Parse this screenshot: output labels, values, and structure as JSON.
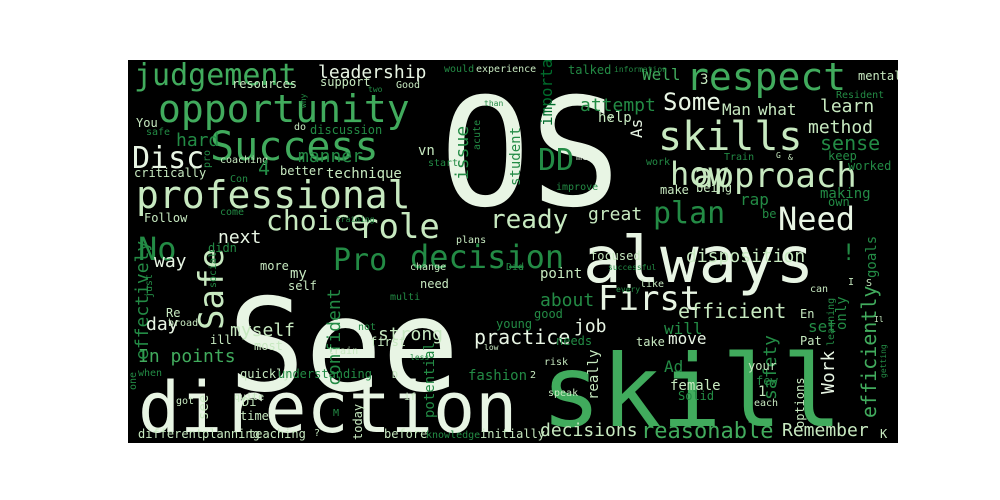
{
  "wordcloud": {
    "background": "#000000",
    "palette": {
      "light": "#e8f5e4",
      "pale": "#c7e9c0",
      "mid": "#74c476",
      "green": "#41ab5d",
      "dark": "#238b45",
      "deep": "#006d2c"
    },
    "words": [
      {
        "text": "See",
        "color": "light"
      },
      {
        "text": "OS",
        "color": "light"
      },
      {
        "text": "skill",
        "color": "green"
      },
      {
        "text": "always",
        "color": "light"
      },
      {
        "text": "direction",
        "color": "light"
      },
      {
        "text": "opportunity",
        "color": "green"
      },
      {
        "text": "professional",
        "color": "pale"
      },
      {
        "text": "Success",
        "color": "green"
      },
      {
        "text": "respect",
        "color": "green"
      },
      {
        "text": "skills",
        "color": "pale"
      },
      {
        "text": "approach",
        "color": "pale"
      },
      {
        "text": "judgement",
        "color": "green"
      },
      {
        "text": "decision",
        "color": "dark"
      },
      {
        "text": "role",
        "color": "pale"
      },
      {
        "text": "choice",
        "color": "pale"
      },
      {
        "text": "Safe",
        "color": "pale"
      },
      {
        "text": "First",
        "color": "light"
      },
      {
        "text": "Disc",
        "color": "light"
      },
      {
        "text": "how",
        "color": "pale"
      },
      {
        "text": "plan",
        "color": "dark"
      },
      {
        "text": "Need",
        "color": "light"
      },
      {
        "text": "Pro",
        "color": "dark"
      },
      {
        "text": "ready",
        "color": "pale"
      },
      {
        "text": "No",
        "color": "dark"
      },
      {
        "text": "DD",
        "color": "dark"
      },
      {
        "text": "Some",
        "color": "light"
      },
      {
        "text": "reasonable",
        "color": "green"
      },
      {
        "text": "efficiently",
        "color": "green"
      },
      {
        "text": "efficient",
        "color": "pale"
      },
      {
        "text": "leadership",
        "color": "light"
      },
      {
        "text": "hard",
        "color": "dark"
      },
      {
        "text": "sense",
        "color": "dark"
      },
      {
        "text": "method",
        "color": "pale"
      },
      {
        "text": "learn",
        "color": "pale"
      },
      {
        "text": "disposition",
        "color": "pale"
      },
      {
        "text": "practice",
        "color": "light"
      },
      {
        "text": "decisions",
        "color": "pale"
      },
      {
        "text": "Remember",
        "color": "pale"
      },
      {
        "text": "strong",
        "color": "pale"
      },
      {
        "text": "confident",
        "color": "dark"
      },
      {
        "text": "myself",
        "color": "pale"
      },
      {
        "text": "In points",
        "color": "green"
      },
      {
        "text": "effectively",
        "color": "dark"
      },
      {
        "text": "way",
        "color": "light"
      },
      {
        "text": "day",
        "color": "light"
      },
      {
        "text": "job",
        "color": "light"
      },
      {
        "text": "Work",
        "color": "light"
      },
      {
        "text": "safety",
        "color": "dark"
      },
      {
        "text": "great",
        "color": "pale"
      },
      {
        "text": "about",
        "color": "dark"
      },
      {
        "text": "next",
        "color": "light"
      },
      {
        "text": "attempt",
        "color": "dark"
      },
      {
        "text": "technique",
        "color": "pale"
      },
      {
        "text": "manner",
        "color": "dark"
      },
      {
        "text": "issue",
        "color": "dark"
      },
      {
        "text": "student",
        "color": "dark"
      },
      {
        "text": "important",
        "color": "deep"
      },
      {
        "text": "Well",
        "color": "green"
      },
      {
        "text": "Man",
        "color": "pale"
      },
      {
        "text": "what",
        "color": "pale"
      },
      {
        "text": "As",
        "color": "light"
      },
      {
        "text": "help",
        "color": "pale"
      },
      {
        "text": "mental",
        "color": "pale"
      },
      {
        "text": "Resident",
        "color": "dark"
      },
      {
        "text": "Good",
        "color": "pale"
      },
      {
        "text": "support",
        "color": "pale"
      },
      {
        "text": "resources",
        "color": "pale"
      },
      {
        "text": "You",
        "color": "pale"
      },
      {
        "text": "coaching",
        "color": "pale"
      },
      {
        "text": "critically",
        "color": "pale"
      },
      {
        "text": "better",
        "color": "pale"
      },
      {
        "text": "Follow",
        "color": "pale"
      },
      {
        "text": "didn",
        "color": "dark"
      },
      {
        "text": "quickly",
        "color": "pale"
      },
      {
        "text": "understanding",
        "color": "dark"
      },
      {
        "text": "fashion",
        "color": "dark"
      },
      {
        "text": "see",
        "color": "pale"
      },
      {
        "text": "Di",
        "color": "pale"
      },
      {
        "text": "time",
        "color": "pale"
      },
      {
        "text": "different",
        "color": "pale"
      },
      {
        "text": "planning",
        "color": "pale"
      },
      {
        "text": "teaching",
        "color": "pale"
      },
      {
        "text": "today",
        "color": "pale"
      },
      {
        "text": "before",
        "color": "pale"
      },
      {
        "text": "knowledge",
        "color": "dark"
      },
      {
        "text": "initially",
        "color": "pale"
      },
      {
        "text": "potential",
        "color": "dark"
      },
      {
        "text": "really",
        "color": "pale"
      },
      {
        "text": "female",
        "color": "pale"
      },
      {
        "text": "move",
        "color": "light"
      },
      {
        "text": "options",
        "color": "pale"
      },
      {
        "text": "set",
        "color": "dark"
      },
      {
        "text": "will",
        "color": "dark"
      },
      {
        "text": "only",
        "color": "dark"
      },
      {
        "text": "goals",
        "color": "dark"
      },
      {
        "text": "make",
        "color": "pale"
      },
      {
        "text": "being",
        "color": "pale"
      },
      {
        "text": "making",
        "color": "dark"
      },
      {
        "text": "own",
        "color": "dark"
      },
      {
        "text": "keep",
        "color": "dark"
      },
      {
        "text": "worked",
        "color": "dark"
      },
      {
        "text": "rap",
        "color": "dark"
      },
      {
        "text": "be",
        "color": "dark"
      },
      {
        "text": "point",
        "color": "pale"
      },
      {
        "text": "young",
        "color": "dark"
      },
      {
        "text": "need",
        "color": "pale"
      },
      {
        "text": "good",
        "color": "dark"
      },
      {
        "text": "first",
        "color": "pale"
      },
      {
        "text": "needs",
        "color": "dark"
      },
      {
        "text": "take",
        "color": "pale"
      },
      {
        "text": "your",
        "color": "pale"
      },
      {
        "text": "Pat",
        "color": "pale"
      },
      {
        "text": "Solid",
        "color": "dark"
      },
      {
        "text": "each",
        "color": "pale"
      },
      {
        "text": "Ad",
        "color": "dark"
      },
      {
        "text": "focused",
        "color": "pale"
      },
      {
        "text": "successful",
        "color": "dark"
      },
      {
        "text": "plans",
        "color": "pale"
      },
      {
        "text": "training",
        "color": "dark"
      },
      {
        "text": "come",
        "color": "dark"
      },
      {
        "text": "Con",
        "color": "dark"
      },
      {
        "text": "start",
        "color": "dark"
      },
      {
        "text": "improve",
        "color": "dark"
      },
      {
        "text": "discussion",
        "color": "dark"
      },
      {
        "text": "talked",
        "color": "dark"
      },
      {
        "text": "information",
        "color": "dark"
      },
      {
        "text": "experience",
        "color": "pale"
      },
      {
        "text": "would",
        "color": "dark"
      },
      {
        "text": "Train",
        "color": "dark"
      },
      {
        "text": "work",
        "color": "dark"
      },
      {
        "text": "Re",
        "color": "pale"
      },
      {
        "text": "broad",
        "color": "pale"
      },
      {
        "text": "ill",
        "color": "pale"
      },
      {
        "text": "most",
        "color": "pale"
      },
      {
        "text": "more",
        "color": "pale"
      },
      {
        "text": "self",
        "color": "pale"
      },
      {
        "text": "social",
        "color": "dark"
      },
      {
        "text": "multi",
        "color": "dark"
      },
      {
        "text": "change",
        "color": "pale"
      },
      {
        "text": "Did",
        "color": "dark"
      },
      {
        "text": "not",
        "color": "dark"
      },
      {
        "text": "speak",
        "color": "pale"
      },
      {
        "text": "risk",
        "color": "pale"
      },
      {
        "text": "low",
        "color": "pale"
      },
      {
        "text": "like",
        "color": "pale"
      },
      {
        "text": "can",
        "color": "pale"
      },
      {
        "text": "En",
        "color": "pale"
      },
      {
        "text": "few",
        "color": "dark"
      },
      {
        "text": "do",
        "color": "pale"
      },
      {
        "text": "two",
        "color": "dark"
      },
      {
        "text": "than",
        "color": "dark"
      },
      {
        "text": "my",
        "color": "pale"
      },
      {
        "text": "just",
        "color": "dark"
      },
      {
        "text": "one",
        "color": "dark"
      },
      {
        "text": "got",
        "color": "pale"
      },
      {
        "text": "when",
        "color": "dark"
      },
      {
        "text": "train",
        "color": "pale"
      },
      {
        "text": "if",
        "color": "pale"
      },
      {
        "text": "quite",
        "color": "pale"
      },
      {
        "text": "M",
        "color": "dark"
      },
      {
        "text": "me",
        "color": "light"
      },
      {
        "text": "acute",
        "color": "dark"
      },
      {
        "text": "learning",
        "color": "dark"
      },
      {
        "text": "getting",
        "color": "dark"
      },
      {
        "text": "less",
        "color": "dark"
      },
      {
        "text": "every",
        "color": "dark"
      },
      {
        "text": "why",
        "color": "dark"
      },
      {
        "text": "pro",
        "color": "dark"
      },
      {
        "text": "safe",
        "color": "dark"
      },
      {
        "text": "v",
        "color": "pale"
      },
      {
        "text": "vn",
        "color": "pale"
      },
      {
        "text": "I",
        "color": "pale"
      },
      {
        "text": "K",
        "color": "pale"
      },
      {
        "text": "S",
        "color": "pale"
      },
      {
        "text": "G",
        "color": "pale"
      },
      {
        "text": "Il",
        "color": "pale"
      },
      {
        "text": "3",
        "color": "pale"
      },
      {
        "text": "4",
        "color": "dark"
      },
      {
        "text": "2",
        "color": "pale"
      },
      {
        "text": "1",
        "color": "pale"
      },
      {
        "text": "!",
        "color": "dark"
      },
      {
        "text": "&",
        "color": "pale"
      },
      {
        "text": "?",
        "color": "pale"
      },
      {
        "text": "D",
        "color": "pale"
      }
    ]
  }
}
